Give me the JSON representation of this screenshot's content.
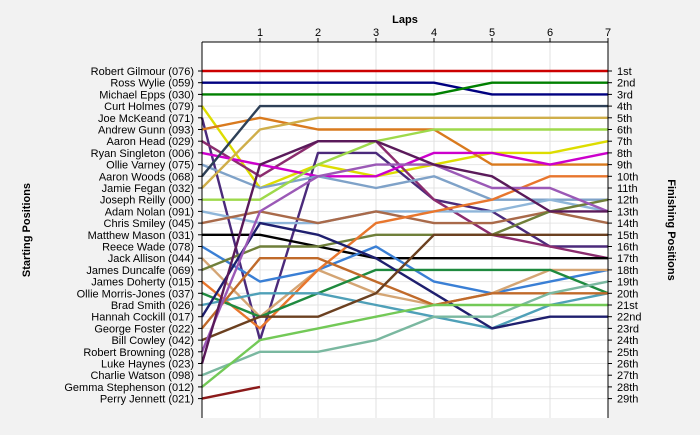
{
  "chart_data": {
    "type": "line",
    "title": "Laps",
    "xlabel": "Laps",
    "ylabel_left": "Starting Positions",
    "ylabel_right": "Finishing Positions",
    "x_ticks": [
      "1",
      "2",
      "3",
      "4",
      "5",
      "6",
      "7"
    ],
    "xlim": [
      0,
      7
    ],
    "ylim": [
      1,
      29
    ],
    "grid": true,
    "drivers": [
      "Robert Gilmour (076)",
      "Ross Wylie (059)",
      "Michael Epps (030)",
      "Curt Holmes (079)",
      "Joe McKeand (071)",
      "Andrew Gunn (093)",
      "Aaron Head (029)",
      "Ryan Singleton (006)",
      "Ollie Varney (075)",
      "Aaron Woods (068)",
      "Jamie Fegan (032)",
      "Joseph Reilly (000)",
      "Adam Nolan (091)",
      "Chris Smiley (045)",
      "Matthew Mason (031)",
      "Reece Wade (078)",
      "Jack Allison (044)",
      "James Duncalfe (069)",
      "James Doherty (015)",
      "Ollie Morris-Jones (037)",
      "Brad Smith (026)",
      "Hannah Cockill (017)",
      "George Foster (022)",
      "Bill Cowley (042)",
      "Robert Browning (028)",
      "Luke Haynes (023)",
      "Charlie Watson (098)",
      "Gemma Stephenson (012)",
      "Perry Jennett (021)"
    ],
    "finishing_labels": [
      "1st",
      "2nd",
      "3rd",
      "4th",
      "5th",
      "6th",
      "7th",
      "8th",
      "9th",
      "10th",
      "11th",
      "12th",
      "13th",
      "14th",
      "15th",
      "16th",
      "17th",
      "18th",
      "19th",
      "20th",
      "21st",
      "22nd",
      "23rd",
      "24th",
      "25th",
      "26th",
      "27th",
      "28th",
      "29th"
    ],
    "series": [
      {
        "name": "Robert Gilmour (076)",
        "color": "#cc0000",
        "values": [
          1,
          1,
          1,
          1,
          1,
          1,
          1,
          1
        ]
      },
      {
        "name": "Ross Wylie (059)",
        "color": "#000080",
        "values": [
          2,
          2,
          2,
          2,
          2,
          3,
          3,
          3
        ]
      },
      {
        "name": "Michael Epps (030)",
        "color": "#008000",
        "values": [
          3,
          3,
          3,
          3,
          3,
          2,
          2,
          2
        ]
      },
      {
        "name": "Curt Holmes (079)",
        "color": "#dddd00",
        "values": [
          4,
          11,
          9,
          10,
          9,
          8,
          8,
          7
        ]
      },
      {
        "name": "Joe McKeand (071)",
        "color": "#4b2a7b",
        "values": [
          5,
          24,
          8,
          8,
          12,
          13,
          16,
          16
        ]
      },
      {
        "name": "Andrew Gunn (093)",
        "color": "#d97a1e",
        "values": [
          6,
          5,
          6,
          6,
          6,
          9,
          9,
          9
        ]
      },
      {
        "name": "Aaron Head (029)",
        "color": "#8b2c6e",
        "values": [
          7,
          10,
          7,
          7,
          12,
          15,
          16,
          17
        ]
      },
      {
        "name": "Ryan Singleton (006)",
        "color": "#cc00cc",
        "values": [
          8,
          9,
          10,
          10,
          8,
          8,
          9,
          8
        ]
      },
      {
        "name": "Ollie Varney (075)",
        "color": "#7fa2c8",
        "values": [
          9,
          11,
          10,
          11,
          10,
          12,
          12,
          12
        ]
      },
      {
        "name": "Aaron Woods (068)",
        "color": "#2e4057",
        "values": [
          10,
          4,
          4,
          4,
          4,
          4,
          4,
          4
        ]
      },
      {
        "name": "Jamie Fegan (032)",
        "color": "#cfae4a",
        "values": [
          11,
          6,
          5,
          5,
          5,
          5,
          5,
          5
        ]
      },
      {
        "name": "Joseph Reilly (000)",
        "color": "#9ed94b",
        "values": [
          12,
          12,
          9,
          7,
          6,
          6,
          6,
          6
        ]
      },
      {
        "name": "Adam Nolan (091)",
        "color": "#8fb6d9",
        "values": [
          13,
          14,
          14,
          13,
          13,
          13,
          12,
          13
        ]
      },
      {
        "name": "Chris Smiley (045)",
        "color": "#a96a4a",
        "values": [
          14,
          13,
          14,
          13,
          14,
          14,
          13,
          14
        ]
      },
      {
        "name": "Matthew Mason (031)",
        "color": "#000000",
        "values": [
          15,
          15,
          16,
          17,
          17,
          17,
          17,
          17
        ]
      },
      {
        "name": "Reece Wade (078)",
        "color": "#3a7fd5",
        "values": [
          16,
          19,
          18,
          16,
          19,
          20,
          19,
          18
        ]
      },
      {
        "name": "Jack Allison (044)",
        "color": "#d4a574",
        "values": [
          17,
          22,
          18,
          20,
          21,
          20,
          18,
          18
        ]
      },
      {
        "name": "James Duncalfe (069)",
        "color": "#6f7f3a",
        "values": [
          18,
          16,
          16,
          15,
          15,
          15,
          13,
          12
        ]
      },
      {
        "name": "James Doherty (015)",
        "color": "#e8762d",
        "values": [
          19,
          23,
          18,
          14,
          13,
          12,
          10,
          10
        ]
      },
      {
        "name": "Ollie Morris-Jones (037)",
        "color": "#1f8a3f",
        "values": [
          20,
          22,
          20,
          18,
          18,
          18,
          18,
          20
        ]
      },
      {
        "name": "Brad Smith (026)",
        "color": "#4fa0b8",
        "values": [
          21,
          20,
          20,
          21,
          22,
          23,
          21,
          20
        ]
      },
      {
        "name": "Hannah Cockill (017)",
        "color": "#1f1f6e",
        "values": [
          22,
          14,
          15,
          17,
          20,
          23,
          22,
          22
        ]
      },
      {
        "name": "George Foster (022)",
        "color": "#c06a2a",
        "values": [
          23,
          17,
          17,
          19,
          21,
          20,
          20,
          20
        ]
      },
      {
        "name": "Bill Cowley (042)",
        "color": "#6b4020",
        "values": [
          24,
          22,
          22,
          20,
          15,
          15,
          15,
          15
        ]
      },
      {
        "name": "Robert Browning (028)",
        "color": "#9b59b6",
        "values": [
          25,
          13,
          10,
          9,
          9,
          11,
          11,
          13
        ]
      },
      {
        "name": "Luke Haynes (023)",
        "color": "#5a1a5a",
        "values": [
          26,
          9,
          7,
          7,
          9,
          10,
          13,
          13
        ]
      },
      {
        "name": "Charlie Watson (098)",
        "color": "#7ab8a0",
        "values": [
          27,
          25,
          25,
          24,
          22,
          22,
          20,
          19
        ]
      },
      {
        "name": "Gemma Stephenson (012)",
        "color": "#73c957",
        "values": [
          28,
          24,
          23,
          22,
          21,
          21,
          21,
          21
        ]
      },
      {
        "name": "Perry Jennett (021)",
        "color": "#8b1a1a",
        "values": [
          29,
          28
        ]
      }
    ]
  }
}
